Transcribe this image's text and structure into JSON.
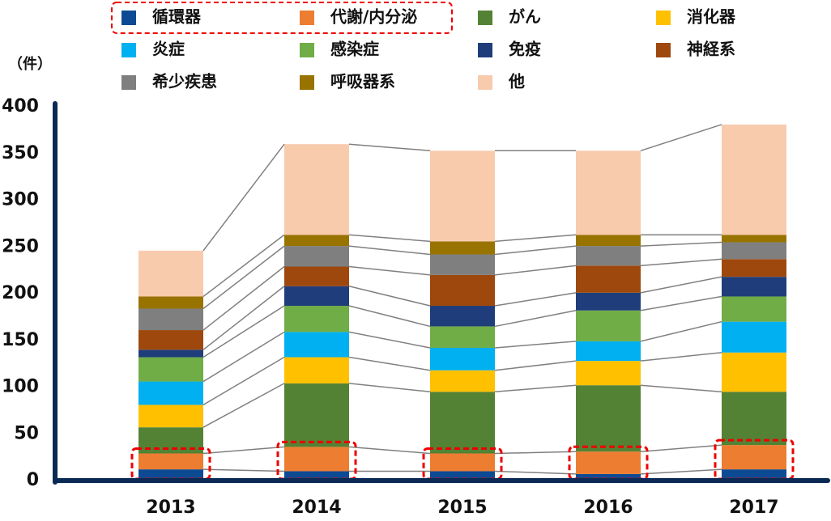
{
  "chart_data": {
    "type": "stacked_bar",
    "y_label": "（件）",
    "categories": [
      "2013",
      "2014",
      "2015",
      "2016",
      "2017"
    ],
    "series": [
      {
        "name": "循環器",
        "color": "#0d4a94",
        "values": [
          12,
          10,
          10,
          7,
          12
        ]
      },
      {
        "name": "代謝/内分泌",
        "color": "#ed7d31",
        "values": [
          17,
          26,
          19,
          24,
          26
        ]
      },
      {
        "name": "がん",
        "color": "#548235",
        "values": [
          28,
          68,
          66,
          71,
          57
        ]
      },
      {
        "name": "消化器",
        "color": "#ffc000",
        "values": [
          24,
          28,
          23,
          26,
          42
        ]
      },
      {
        "name": "炎症",
        "color": "#00b0f0",
        "values": [
          25,
          27,
          24,
          21,
          33
        ]
      },
      {
        "name": "感染症",
        "color": "#70ad47",
        "values": [
          26,
          28,
          23,
          33,
          27
        ]
      },
      {
        "name": "免疫",
        "color": "#1f3d7a",
        "values": [
          8,
          21,
          22,
          19,
          21
        ]
      },
      {
        "name": "神経系",
        "color": "#9e480e",
        "values": [
          21,
          21,
          33,
          29,
          19
        ]
      },
      {
        "name": "希少疾患",
        "color": "#7f7f7f",
        "values": [
          23,
          22,
          22,
          21,
          18
        ]
      },
      {
        "name": "呼吸器系",
        "color": "#997300",
        "values": [
          13,
          12,
          14,
          12,
          8
        ]
      },
      {
        "name": "他",
        "color": "#f8cbad",
        "values": [
          49,
          97,
          97,
          90,
          118
        ]
      }
    ],
    "ylim": [
      0,
      400
    ],
    "yticks": [
      0,
      50,
      100,
      150,
      200,
      250,
      300,
      350,
      400
    ]
  }
}
